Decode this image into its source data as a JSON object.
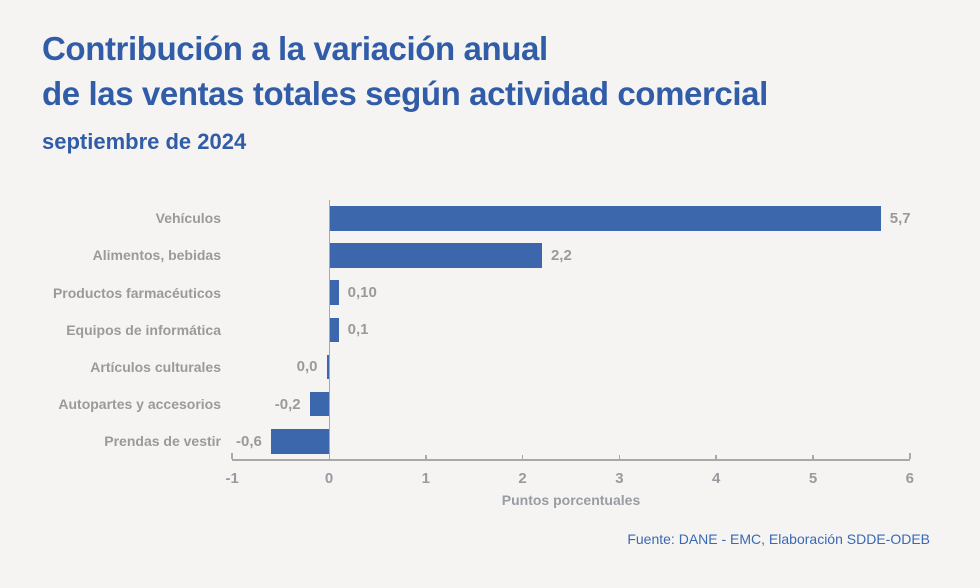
{
  "page": {
    "title_line1": "Contribución a la variación anual",
    "title_line2": "de las ventas totales según actividad comercial",
    "subtitle": "septiembre de 2024",
    "source": "Fuente: DANE - EMC, Elaboración SDDE-ODEB"
  },
  "colors": {
    "background": "#f5f4f2",
    "bar_blue": "#3c67ad",
    "title_blue": "#315ca8",
    "label_gray": "#9a9a9a",
    "axis_gray": "#a9a9a9",
    "source_blue": "#3a69b4"
  },
  "chart_data": {
    "type": "bar",
    "orientation": "horizontal",
    "title": "Contribución a la variación anual de las ventas totales según actividad comercial",
    "subtitle": "septiembre de 2024",
    "xlabel": "Puntos porcentuales",
    "xlim": [
      -1,
      6
    ],
    "xticks": [
      -1,
      0,
      1,
      2,
      3,
      4,
      5,
      6
    ],
    "grid": false,
    "legend": false,
    "categories": [
      "Vehículos",
      "Alimentos, bebidas",
      "Productos farmacéuticos",
      "Equipos de informática",
      "Artículos culturales",
      "Autopartes y accesorios",
      "Prendas de vestir"
    ],
    "values": [
      5.7,
      2.2,
      0.1,
      0.1,
      0.0,
      -0.2,
      -0.6
    ],
    "value_labels": [
      "5,7",
      "2,2",
      "0,10",
      "0,1",
      "0,0",
      "-0,2",
      "-0,6"
    ],
    "value_label_side": [
      "right",
      "right",
      "right",
      "right",
      "left",
      "left",
      "left"
    ]
  }
}
